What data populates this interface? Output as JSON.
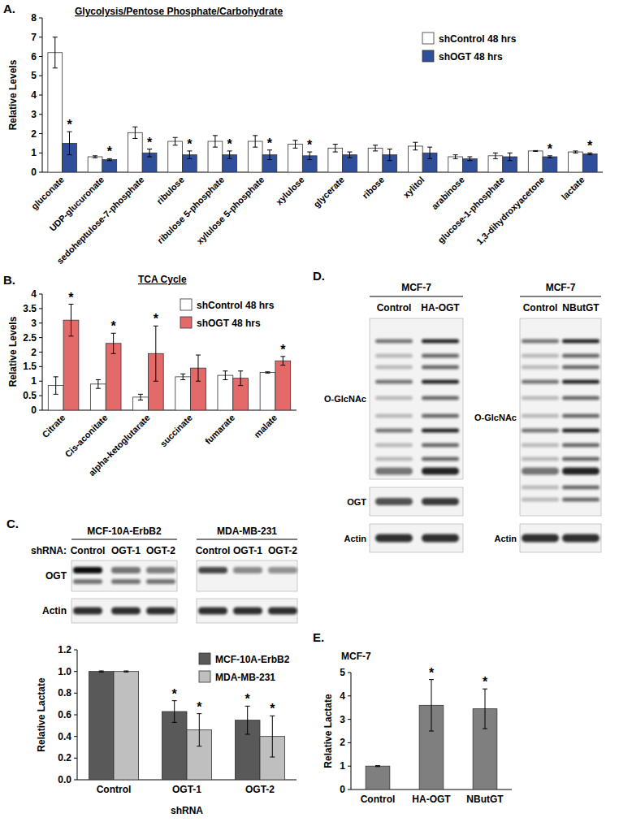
{
  "chart_data": [
    {
      "type": "bar",
      "panel": "A.",
      "title": "Glycolysis/Pentose Phosphate/Carbohydrate",
      "ylabel": "Relative Levels",
      "categories": [
        "gluconate",
        "UDP-glucuronate",
        "sedoheptulose-7-phosphate",
        "ribulose",
        "ribulose 5-phosphate",
        "xylulose 5-phosphate",
        "xylulose",
        "glycerate",
        "ribose",
        "xylitol",
        "arabinose",
        "glucose-1-phosphate",
        "1,3-dihydroxyacetone",
        "lactate"
      ],
      "series": [
        {
          "name": "shControl 48 hrs",
          "color": "#ffffff",
          "values": [
            6.2,
            0.8,
            2.05,
            1.6,
            1.6,
            1.6,
            1.45,
            1.25,
            1.25,
            1.35,
            0.8,
            0.85,
            1.1,
            1.05
          ],
          "errors": [
            0.8,
            0.05,
            0.3,
            0.2,
            0.3,
            0.3,
            0.2,
            0.2,
            0.15,
            0.2,
            0.1,
            0.15,
            0.02,
            0.05
          ]
        },
        {
          "name": "shOGT 48 hrs",
          "color": "#2f4f9a",
          "values": [
            1.5,
            0.65,
            1.0,
            0.9,
            0.9,
            0.9,
            0.85,
            0.9,
            0.9,
            1.0,
            0.7,
            0.8,
            0.8,
            0.95
          ],
          "errors": [
            0.6,
            0.05,
            0.2,
            0.2,
            0.2,
            0.25,
            0.2,
            0.15,
            0.3,
            0.3,
            0.1,
            0.2,
            0.05,
            0.05
          ],
          "annotations": [
            "*",
            "*",
            "*",
            "*",
            "*",
            "*",
            "*",
            null,
            null,
            null,
            null,
            null,
            "*",
            "*"
          ]
        }
      ],
      "ylim": [
        0,
        8
      ],
      "yticks": [
        0,
        1,
        2,
        3,
        4,
        5,
        6,
        7,
        8
      ],
      "grid": false,
      "legend": "upper right"
    },
    {
      "type": "bar",
      "panel": "B.",
      "title": "TCA Cycle",
      "ylabel": "Relative Levels",
      "categories": [
        "Citrate",
        "Cis-aconitate",
        "alpha-ketoglutarate",
        "succinate",
        "fumarate",
        "malate"
      ],
      "series": [
        {
          "name": "shControl 48 hrs",
          "color": "#ffffff",
          "values": [
            0.85,
            0.9,
            0.45,
            1.15,
            1.2,
            1.3
          ],
          "errors": [
            0.3,
            0.15,
            0.1,
            0.1,
            0.15,
            0.02
          ]
        },
        {
          "name": "shOGT 48 hrs",
          "color": "#e46a6a",
          "values": [
            3.1,
            2.3,
            1.95,
            1.45,
            1.1,
            1.7
          ],
          "errors": [
            0.55,
            0.35,
            0.95,
            0.45,
            0.25,
            0.15
          ],
          "annotations": [
            "*",
            "*",
            "*",
            null,
            null,
            "*"
          ]
        }
      ],
      "ylim": [
        0,
        4
      ],
      "yticks": [
        0,
        0.5,
        1,
        1.5,
        2,
        2.5,
        3,
        3.5,
        4
      ],
      "grid": false,
      "legend": "upper right"
    },
    {
      "type": "bar",
      "ylabel": "Relative Lactate",
      "xlabel": "shRNA",
      "categories": [
        "Control",
        "OGT-1",
        "OGT-2"
      ],
      "series": [
        {
          "name": "MCF-10A-ErbB2",
          "color": "#595959",
          "values": [
            1.0,
            0.63,
            0.55
          ],
          "errors": [
            0.005,
            0.1,
            0.13
          ],
          "annotations": [
            null,
            "*",
            "*"
          ]
        },
        {
          "name": "MDA-MB-231",
          "color": "#bfbfbf",
          "values": [
            1.0,
            0.46,
            0.4
          ],
          "errors": [
            0.005,
            0.15,
            0.19
          ],
          "annotations": [
            null,
            "*",
            "*"
          ]
        }
      ],
      "ylim": [
        0,
        1.2
      ],
      "yticks": [
        {
          "value": 0,
          "label": "0.0"
        },
        0.2,
        0.4,
        0.6,
        0.8,
        {
          "value": 1,
          "label": "1.0"
        },
        1.2
      ],
      "grid": false,
      "legend": "upper right"
    },
    {
      "type": "bar",
      "panel": "E.",
      "title": "MCF-7",
      "ylabel": "Relative Lactate",
      "categories": [
        "Control",
        "HA-OGT",
        "NButGT"
      ],
      "series": [
        {
          "name": "Relative Lactate",
          "color": "#7f7f7f",
          "values": [
            1.0,
            3.6,
            3.45
          ],
          "errors": [
            0.02,
            1.1,
            0.85
          ],
          "annotations": [
            null,
            "*",
            "*"
          ]
        }
      ],
      "ylim": [
        0,
        5
      ],
      "yticks": [
        0,
        1,
        2,
        3,
        4,
        5
      ],
      "grid": false
    }
  ],
  "blots": [
    {
      "panel": "C.",
      "lane_label": "shRNA:",
      "rows": [
        "OGT",
        "Actin"
      ],
      "groups": [
        {
          "title": "MCF-10A-ErbB2",
          "lanes": [
            "Control",
            "OGT-1",
            "OGT-2"
          ]
        },
        {
          "title": "MDA-MB-231",
          "lanes": [
            "Control",
            "OGT-1",
            "OGT-2"
          ]
        }
      ]
    },
    {
      "panel": "D.",
      "groups": [
        {
          "title": "MCF-7",
          "lanes": [
            "Control",
            "HA-OGT"
          ],
          "rows": [
            "O-GlcNAc",
            "OGT",
            "Actin"
          ]
        },
        {
          "title": "MCF-7",
          "lanes": [
            "Control",
            "NButGT"
          ],
          "rows": [
            "O-GlcNAc",
            "Actin"
          ]
        }
      ]
    }
  ]
}
